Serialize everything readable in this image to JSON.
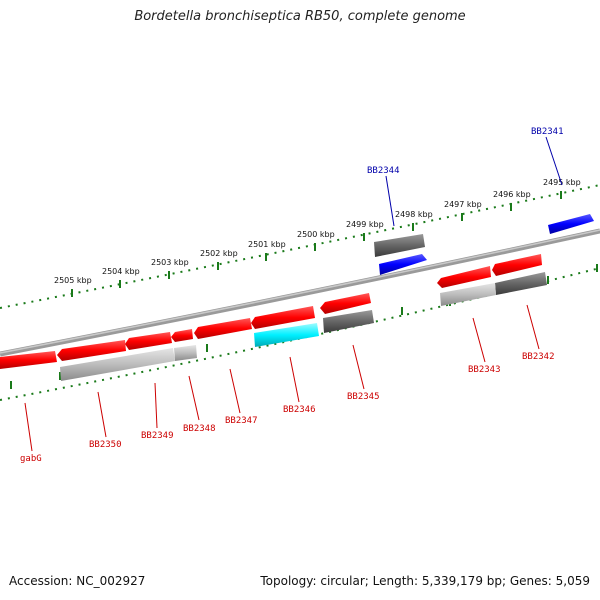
{
  "title": "Bordetella bronchiseptica RB50, complete genome",
  "accession": "Accession: NC_002927",
  "summary": "Topology: circular; Length: 5,339,179 bp; Genes: 5,059",
  "colors": {
    "red_label": "#cc0000",
    "blue_label": "#0000aa",
    "tick_green": "#1a7a1a",
    "backbone": "#888888"
  },
  "ticks": [
    "2495 kbp",
    "2496 kbp",
    "2497 kbp",
    "2498 kbp",
    "2499 kbp",
    "2500 kbp",
    "2501 kbp",
    "2502 kbp",
    "2503 kbp",
    "2504 kbp",
    "2505 kbp"
  ],
  "genes": [
    {
      "label": "BB2341",
      "color": "blue"
    },
    {
      "label": "BB2342",
      "color": "red"
    },
    {
      "label": "BB2343",
      "color": "red"
    },
    {
      "label": "BB2344",
      "color": "blue"
    },
    {
      "label": "BB2345",
      "color": "red"
    },
    {
      "label": "BB2346",
      "color": "red"
    },
    {
      "label": "BB2347",
      "color": "red"
    },
    {
      "label": "BB2348",
      "color": "red"
    },
    {
      "label": "BB2349",
      "color": "red"
    },
    {
      "label": "BB2350",
      "color": "red"
    },
    {
      "label": "gabG",
      "color": "red"
    }
  ]
}
